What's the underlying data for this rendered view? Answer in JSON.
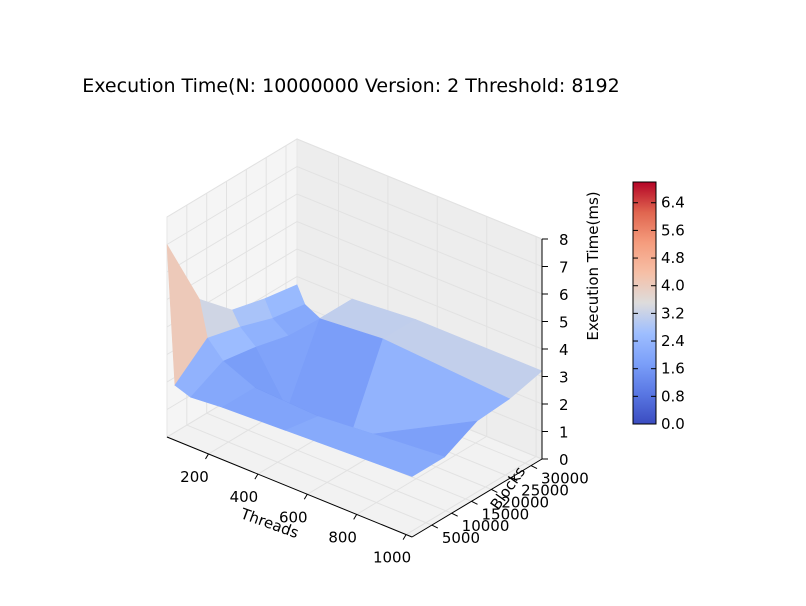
{
  "chart_data": {
    "type": "surface",
    "title": "Execution Time(N: 10000000 Version: 2 Threshold: 8192",
    "xlabel": "Threads",
    "ylabel": "Blocks",
    "zlabel": "Execution Time(ms)",
    "xticks": [
      "200",
      "400",
      "600",
      "800",
      "1000"
    ],
    "yticks": [
      "5000",
      "10000",
      "15000",
      "20000",
      "25000",
      "30000"
    ],
    "zticks": [
      "0",
      "1",
      "2",
      "3",
      "4",
      "5",
      "6",
      "7",
      "8"
    ],
    "xlim": [
      32,
      1024
    ],
    "ylim": [
      0,
      32768
    ],
    "zlim": [
      0,
      8
    ],
    "colormap": "coolwarm",
    "colorbar": {
      "ticks": [
        "0.0",
        "0.8",
        "1.6",
        "2.4",
        "3.2",
        "4.0",
        "4.8",
        "5.6",
        "6.4"
      ],
      "range": [
        0,
        7.0
      ]
    },
    "grid": true,
    "threads": [
      32,
      64,
      128,
      256,
      512,
      1024
    ],
    "blocks": [
      0,
      8192,
      16384,
      24576,
      32768
    ],
    "z": [
      [
        7.0,
        4.3,
        3.2,
        2.9,
        2.7
      ],
      [
        2.0,
        3.0,
        2.7,
        2.3,
        2.1
      ],
      [
        1.8,
        2.4,
        2.2,
        1.9,
        1.8
      ],
      [
        1.9,
        1.9,
        0.4,
        3.0,
        3.0
      ],
      [
        2.0,
        1.8,
        0.35,
        3.2,
        3.2
      ],
      [
        2.2,
        2.2,
        2.8,
        2.9,
        3.2
      ]
    ]
  }
}
